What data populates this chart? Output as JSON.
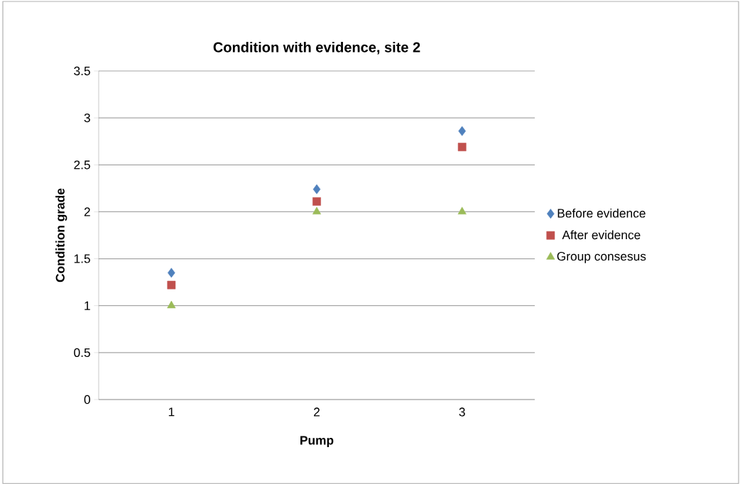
{
  "chart_data": {
    "type": "scatter",
    "title": "Condition with evidence, site 2",
    "xlabel": "Pump",
    "ylabel": "Condition grade",
    "categories": [
      "1",
      "2",
      "3"
    ],
    "series": [
      {
        "name": "Before evidence",
        "color": "#4f81bd",
        "marker": "diamond",
        "values": [
          1.35,
          2.24,
          2.86
        ]
      },
      {
        "name": "After evidence",
        "color": "#c0504d",
        "marker": "square",
        "values": [
          1.22,
          2.11,
          2.69
        ]
      },
      {
        "name": "Group consesus",
        "color": "#9bbb59",
        "marker": "triangle",
        "values": [
          1,
          2,
          2
        ]
      }
    ],
    "ylim": [
      0,
      3.5
    ],
    "yticks": [
      0,
      0.5,
      1,
      1.5,
      2,
      2.5,
      3,
      3.5
    ],
    "grid": "y",
    "legend": "right"
  }
}
